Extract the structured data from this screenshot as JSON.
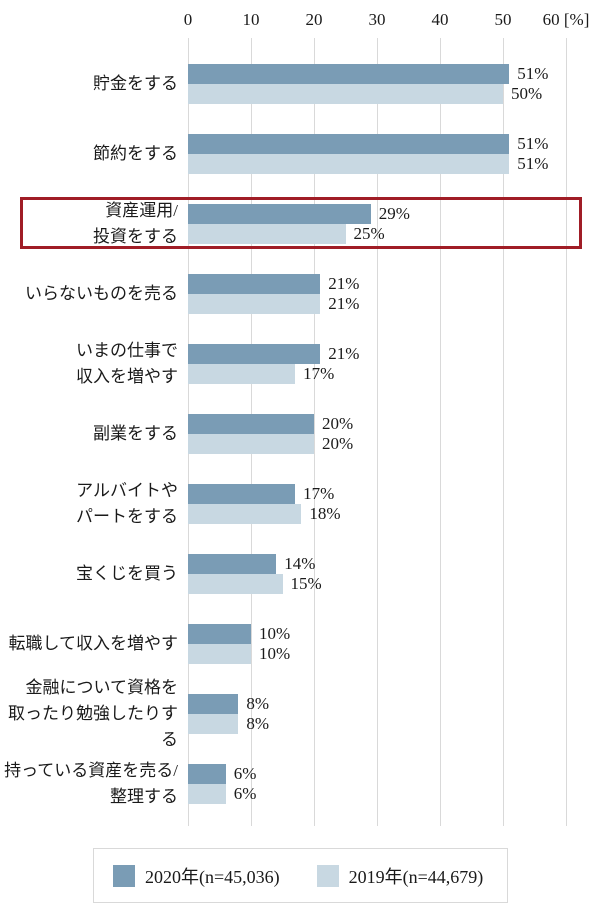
{
  "chart_data": {
    "type": "bar",
    "orientation": "horizontal",
    "title": "",
    "xlabel_unit": "[%]",
    "axis_ticks": [
      0,
      10,
      20,
      30,
      40,
      50,
      60
    ],
    "axis_range": [
      0,
      60
    ],
    "grid": true,
    "grid_color": "#d9d9d9",
    "legend_position": "bottom",
    "value_suffix": "%",
    "categories": [
      "貯金をする",
      "節約をする",
      "資産運用/\n投資をする",
      "いらないものを売る",
      "いまの仕事で\n収入を増やす",
      "副業をする",
      "アルバイトや\nパートをする",
      "宝くじを買う",
      "転職して収入を増やす",
      "金融について資格を\n取ったり勉強したりする",
      "持っている資産を売る/\n整理する"
    ],
    "series": [
      {
        "name": "2020年(n=45,036)",
        "color": "#7a9cb5",
        "values": [
          51,
          51,
          29,
          21,
          21,
          20,
          17,
          14,
          10,
          8,
          6
        ]
      },
      {
        "name": "2019年(n=44,679)",
        "color": "#c8d8e2",
        "values": [
          50,
          51,
          25,
          21,
          17,
          20,
          18,
          15,
          10,
          8,
          6
        ]
      }
    ],
    "highlight": {
      "row_index": 2,
      "category": "資産運用/投資をする",
      "border_color": "#a01d26"
    }
  }
}
